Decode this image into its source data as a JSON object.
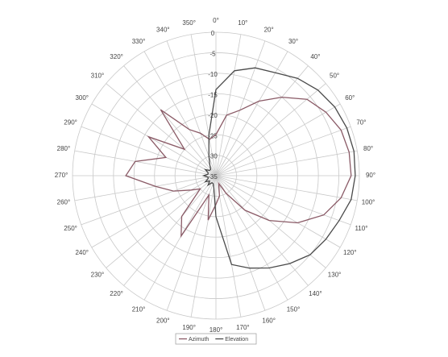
{
  "chart_data": {
    "type": "polar",
    "x": [
      0,
      10,
      20,
      30,
      40,
      50,
      60,
      70,
      80,
      90,
      100,
      110,
      120,
      130,
      140,
      150,
      160,
      170,
      180,
      190,
      200,
      210,
      220,
      230,
      240,
      250,
      260,
      270,
      280,
      290,
      300,
      310,
      320,
      330,
      340,
      350
    ],
    "series": [
      {
        "name": "Azimuth",
        "color": "#8a5a66",
        "values": [
          -25,
          -20,
          -18,
          -14,
          -10,
          -6,
          -4,
          -2.5,
          -2,
          -2,
          -4,
          -7,
          -12,
          -18,
          -24,
          -30,
          -33,
          -30,
          -28,
          -24,
          -30,
          -18,
          -22,
          -30,
          -28,
          -24,
          -20,
          -13,
          -15,
          -22,
          -16,
          -25,
          -14,
          -22,
          -24,
          -26
        ]
      },
      {
        "name": "Elevation",
        "color": "#4a4a4a",
        "values": [
          -14,
          -9,
          -7,
          -6,
          -4,
          -2.5,
          -1.5,
          -1,
          -0.8,
          -1,
          -1.5,
          -3,
          -4,
          -5,
          -7,
          -9,
          -11,
          -13,
          -25,
          -32,
          -33,
          -33,
          -32,
          -33,
          -32,
          -33,
          -33,
          -32,
          -33,
          -33,
          -32,
          -33,
          -33,
          -32,
          -30,
          -25
        ]
      }
    ],
    "rlim": [
      -35,
      0
    ],
    "rticks": [
      0,
      -5,
      -10,
      -15,
      -20,
      -25,
      -30,
      -35
    ],
    "thetaticks": [
      {
        "value": 0,
        "label": "0°"
      },
      {
        "value": 10,
        "label": "10°"
      },
      {
        "value": 20,
        "label": "20°"
      },
      {
        "value": 30,
        "label": "30°"
      },
      {
        "value": 40,
        "label": "40°"
      },
      {
        "value": 50,
        "label": "50°"
      },
      {
        "value": 60,
        "label": "60°"
      },
      {
        "value": 70,
        "label": "70°"
      },
      {
        "value": 80,
        "label": "80°"
      },
      {
        "value": 90,
        "label": "90°"
      },
      {
        "value": 100,
        "label": "100°"
      },
      {
        "value": 110,
        "label": "110°"
      },
      {
        "value": 120,
        "label": "120°"
      },
      {
        "value": 130,
        "label": "130°"
      },
      {
        "value": 140,
        "label": "140°"
      },
      {
        "value": 150,
        "label": "150°"
      },
      {
        "value": 160,
        "label": "160°"
      },
      {
        "value": 170,
        "label": "170°"
      },
      {
        "value": 180,
        "label": "180°"
      },
      {
        "value": 190,
        "label": "190°"
      },
      {
        "value": 200,
        "label": "200°"
      },
      {
        "value": 210,
        "label": "210°"
      },
      {
        "value": 220,
        "label": "220°"
      },
      {
        "value": 230,
        "label": "230°"
      },
      {
        "value": 240,
        "label": "240°"
      },
      {
        "value": 250,
        "label": "250°"
      },
      {
        "value": 260,
        "label": "260°"
      },
      {
        "value": 270,
        "label": "270°"
      },
      {
        "value": 280,
        "label": "280°"
      },
      {
        "value": 290,
        "label": "290°"
      },
      {
        "value": 300,
        "label": "300°"
      },
      {
        "value": 310,
        "label": "310°"
      },
      {
        "value": 320,
        "label": "320°"
      },
      {
        "value": 330,
        "label": "330°"
      },
      {
        "value": 340,
        "label": "340°"
      },
      {
        "value": 350,
        "label": "350°"
      }
    ],
    "grid": true
  }
}
